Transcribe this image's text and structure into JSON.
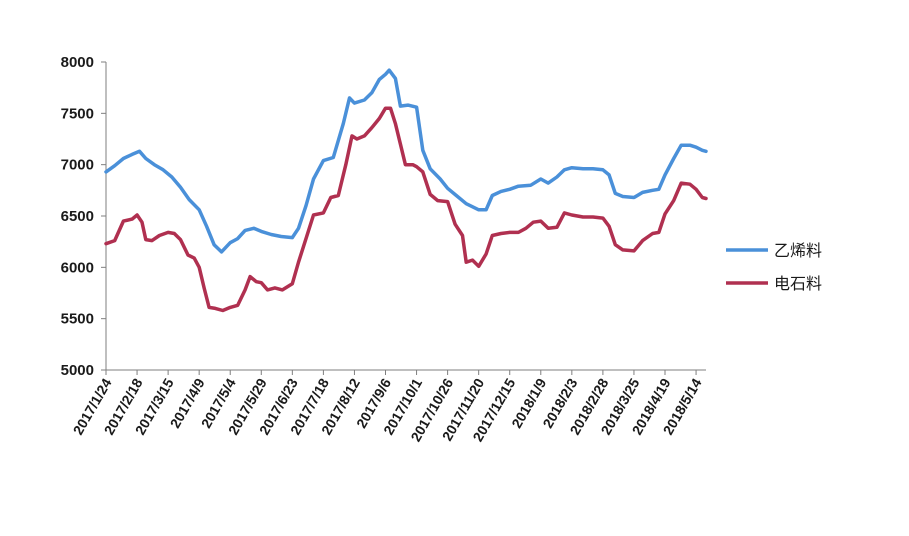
{
  "chart_data": {
    "type": "line",
    "title": "",
    "xlabel": "",
    "ylabel": "",
    "ylim": [
      5000,
      8000
    ],
    "yticks": [
      5000,
      5500,
      6000,
      6500,
      7000,
      7500,
      8000
    ],
    "x_tick_labels": [
      "2017/1/24",
      "2017/2/18",
      "2017/3/15",
      "2017/4/9",
      "2017/5/4",
      "2017/5/29",
      "2017/6/23",
      "2017/7/18",
      "2017/8/12",
      "2017/9/6",
      "2017/10/1",
      "2017/10/26",
      "2017/11/20",
      "2017/12/15",
      "2018/1/9",
      "2018/2/3",
      "2018/2/28",
      "2018/3/25",
      "2018/4/19",
      "2018/5/14"
    ],
    "grid": false,
    "legend_position": "right",
    "series": [
      {
        "name": "乙烯料",
        "color": "#4A90D9",
        "points": [
          [
            "2017/1/24",
            6930
          ],
          [
            "2017/1/31",
            6990
          ],
          [
            "2017/2/7",
            7060
          ],
          [
            "2017/2/14",
            7100
          ],
          [
            "2017/2/20",
            7130
          ],
          [
            "2017/2/25",
            7060
          ],
          [
            "2017/3/4",
            7000
          ],
          [
            "2017/3/11",
            6950
          ],
          [
            "2017/3/18",
            6880
          ],
          [
            "2017/3/25",
            6780
          ],
          [
            "2017/4/1",
            6660
          ],
          [
            "2017/4/9",
            6560
          ],
          [
            "2017/4/15",
            6400
          ],
          [
            "2017/4/21",
            6220
          ],
          [
            "2017/4/27",
            6150
          ],
          [
            "2017/5/4",
            6240
          ],
          [
            "2017/5/10",
            6280
          ],
          [
            "2017/5/16",
            6360
          ],
          [
            "2017/5/23",
            6380
          ],
          [
            "2017/5/29",
            6350
          ],
          [
            "2017/6/6",
            6320
          ],
          [
            "2017/6/14",
            6300
          ],
          [
            "2017/6/23",
            6290
          ],
          [
            "2017/6/28",
            6380
          ],
          [
            "2017/7/4",
            6600
          ],
          [
            "2017/7/10",
            6860
          ],
          [
            "2017/7/18",
            7040
          ],
          [
            "2017/7/26",
            7070
          ],
          [
            "2017/8/3",
            7400
          ],
          [
            "2017/8/8",
            7650
          ],
          [
            "2017/8/12",
            7600
          ],
          [
            "2017/8/20",
            7630
          ],
          [
            "2017/8/26",
            7700
          ],
          [
            "2017/9/1",
            7830
          ],
          [
            "2017/9/6",
            7880
          ],
          [
            "2017/9/9",
            7920
          ],
          [
            "2017/9/14",
            7840
          ],
          [
            "2017/9/18",
            7570
          ],
          [
            "2017/9/24",
            7580
          ],
          [
            "2017/10/1",
            7560
          ],
          [
            "2017/10/6",
            7140
          ],
          [
            "2017/10/12",
            6960
          ],
          [
            "2017/10/20",
            6860
          ],
          [
            "2017/10/26",
            6770
          ],
          [
            "2017/11/2",
            6700
          ],
          [
            "2017/11/10",
            6620
          ],
          [
            "2017/11/20",
            6560
          ],
          [
            "2017/11/26",
            6560
          ],
          [
            "2017/12/1",
            6700
          ],
          [
            "2017/12/8",
            6740
          ],
          [
            "2017/12/15",
            6760
          ],
          [
            "2017/12/22",
            6790
          ],
          [
            "2018/1/1",
            6800
          ],
          [
            "2018/1/9",
            6860
          ],
          [
            "2018/1/15",
            6820
          ],
          [
            "2018/1/22",
            6880
          ],
          [
            "2018/1/28",
            6950
          ],
          [
            "2018/2/3",
            6970
          ],
          [
            "2018/2/12",
            6960
          ],
          [
            "2018/2/20",
            6960
          ],
          [
            "2018/2/28",
            6950
          ],
          [
            "2018/3/5",
            6900
          ],
          [
            "2018/3/10",
            6720
          ],
          [
            "2018/3/16",
            6690
          ],
          [
            "2018/3/25",
            6680
          ],
          [
            "2018/4/1",
            6730
          ],
          [
            "2018/4/9",
            6750
          ],
          [
            "2018/4/14",
            6760
          ],
          [
            "2018/4/19",
            6900
          ],
          [
            "2018/4/26",
            7060
          ],
          [
            "2018/5/2",
            7190
          ],
          [
            "2018/5/9",
            7190
          ],
          [
            "2018/5/14",
            7170
          ],
          [
            "2018/5/19",
            7140
          ],
          [
            "2018/5/22",
            7130
          ]
        ]
      },
      {
        "name": "电石料",
        "color": "#B03050",
        "points": [
          [
            "2017/1/24",
            6230
          ],
          [
            "2017/1/31",
            6260
          ],
          [
            "2017/2/7",
            6450
          ],
          [
            "2017/2/14",
            6470
          ],
          [
            "2017/2/18",
            6510
          ],
          [
            "2017/2/22",
            6440
          ],
          [
            "2017/2/25",
            6270
          ],
          [
            "2017/3/2",
            6260
          ],
          [
            "2017/3/8",
            6310
          ],
          [
            "2017/3/15",
            6340
          ],
          [
            "2017/3/20",
            6330
          ],
          [
            "2017/3/25",
            6270
          ],
          [
            "2017/3/31",
            6120
          ],
          [
            "2017/4/5",
            6090
          ],
          [
            "2017/4/9",
            6000
          ],
          [
            "2017/4/13",
            5800
          ],
          [
            "2017/4/17",
            5610
          ],
          [
            "2017/4/22",
            5600
          ],
          [
            "2017/4/28",
            5580
          ],
          [
            "2017/5/4",
            5610
          ],
          [
            "2017/5/10",
            5630
          ],
          [
            "2017/5/16",
            5780
          ],
          [
            "2017/5/20",
            5910
          ],
          [
            "2017/5/25",
            5860
          ],
          [
            "2017/5/29",
            5850
          ],
          [
            "2017/6/3",
            5780
          ],
          [
            "2017/6/9",
            5800
          ],
          [
            "2017/6/15",
            5780
          ],
          [
            "2017/6/23",
            5840
          ],
          [
            "2017/6/28",
            6050
          ],
          [
            "2017/7/4",
            6280
          ],
          [
            "2017/7/10",
            6510
          ],
          [
            "2017/7/18",
            6530
          ],
          [
            "2017/7/24",
            6680
          ],
          [
            "2017/7/30",
            6700
          ],
          [
            "2017/8/5",
            7000
          ],
          [
            "2017/8/10",
            7280
          ],
          [
            "2017/8/14",
            7250
          ],
          [
            "2017/8/20",
            7280
          ],
          [
            "2017/8/26",
            7360
          ],
          [
            "2017/9/1",
            7450
          ],
          [
            "2017/9/6",
            7550
          ],
          [
            "2017/9/10",
            7550
          ],
          [
            "2017/9/14",
            7400
          ],
          [
            "2017/9/18",
            7200
          ],
          [
            "2017/9/22",
            7000
          ],
          [
            "2017/9/28",
            7000
          ],
          [
            "2017/10/1",
            6980
          ],
          [
            "2017/10/6",
            6930
          ],
          [
            "2017/10/12",
            6710
          ],
          [
            "2017/10/18",
            6650
          ],
          [
            "2017/10/26",
            6640
          ],
          [
            "2017/11/1",
            6420
          ],
          [
            "2017/11/7",
            6310
          ],
          [
            "2017/11/10",
            6050
          ],
          [
            "2017/11/15",
            6070
          ],
          [
            "2017/11/20",
            6010
          ],
          [
            "2017/11/26",
            6130
          ],
          [
            "2017/12/1",
            6310
          ],
          [
            "2017/12/8",
            6330
          ],
          [
            "2017/12/15",
            6340
          ],
          [
            "2017/12/22",
            6340
          ],
          [
            "2017/12/28",
            6380
          ],
          [
            "2018/1/3",
            6440
          ],
          [
            "2018/1/9",
            6450
          ],
          [
            "2018/1/15",
            6380
          ],
          [
            "2018/1/22",
            6390
          ],
          [
            "2018/1/28",
            6530
          ],
          [
            "2018/2/3",
            6510
          ],
          [
            "2018/2/12",
            6490
          ],
          [
            "2018/2/20",
            6490
          ],
          [
            "2018/2/28",
            6480
          ],
          [
            "2018/3/5",
            6400
          ],
          [
            "2018/3/10",
            6220
          ],
          [
            "2018/3/16",
            6170
          ],
          [
            "2018/3/25",
            6160
          ],
          [
            "2018/4/1",
            6260
          ],
          [
            "2018/4/9",
            6330
          ],
          [
            "2018/4/14",
            6340
          ],
          [
            "2018/4/19",
            6520
          ],
          [
            "2018/4/26",
            6650
          ],
          [
            "2018/5/2",
            6820
          ],
          [
            "2018/5/9",
            6810
          ],
          [
            "2018/5/14",
            6760
          ],
          [
            "2018/5/19",
            6680
          ],
          [
            "2018/5/22",
            6670
          ]
        ]
      }
    ]
  }
}
